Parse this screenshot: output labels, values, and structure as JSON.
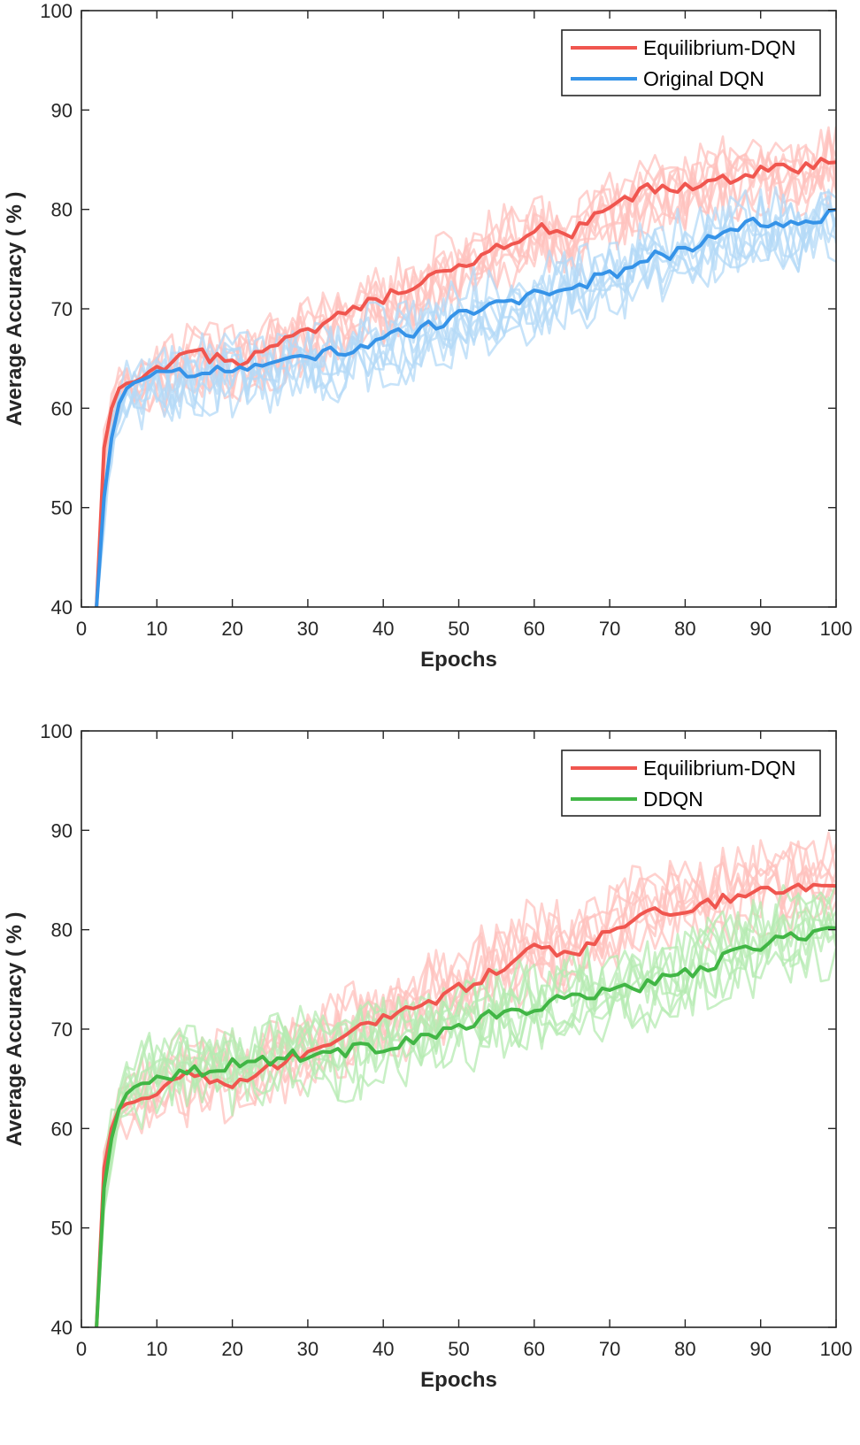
{
  "chart_data": [
    {
      "type": "line",
      "xlabel": "Epochs",
      "ylabel": "Average Accuracy ( % )",
      "xlim": [
        0,
        100
      ],
      "ylim": [
        40,
        100
      ],
      "xticks": [
        "0",
        "10",
        "20",
        "30",
        "40",
        "50",
        "60",
        "70",
        "80",
        "90",
        "100"
      ],
      "yticks": [
        "40",
        "50",
        "60",
        "70",
        "80",
        "90",
        "100"
      ],
      "legend_position": "top-right",
      "grid": false,
      "series": [
        {
          "name": "Equilibrium-DQN",
          "color": "#f0564f",
          "light_color": "#ffc2bd",
          "x": [
            2,
            3,
            4,
            5,
            6,
            8,
            10,
            12,
            15,
            18,
            20,
            25,
            30,
            35,
            40,
            45,
            50,
            55,
            60,
            65,
            70,
            75,
            80,
            85,
            90,
            95,
            100
          ],
          "values": [
            40,
            56,
            60,
            62,
            62.5,
            62.5,
            64,
            64.5,
            65.5,
            65,
            64.5,
            66,
            67.5,
            69.5,
            71,
            72.5,
            74,
            76,
            78,
            77.5,
            80,
            82,
            82,
            83,
            84,
            84,
            85
          ]
        },
        {
          "name": "Original DQN",
          "color": "#3593e8",
          "light_color": "#b4daf7",
          "x": [
            2,
            3,
            4,
            5,
            6,
            8,
            10,
            12,
            15,
            18,
            20,
            25,
            30,
            35,
            40,
            45,
            50,
            55,
            60,
            65,
            70,
            75,
            80,
            85,
            90,
            95,
            100
          ],
          "values": [
            40,
            51,
            57,
            60.5,
            62,
            62.8,
            63.2,
            63.3,
            63.5,
            64,
            63.8,
            64.2,
            65.3,
            65.8,
            67.2,
            67.8,
            69.5,
            70.2,
            71.5,
            72.2,
            73.5,
            75,
            76,
            77.2,
            78.8,
            78.5,
            79.5
          ]
        }
      ]
    },
    {
      "type": "line",
      "xlabel": "Epochs",
      "ylabel": "Average Accuracy ( % )",
      "xlim": [
        0,
        100
      ],
      "ylim": [
        40,
        100
      ],
      "xticks": [
        "0",
        "10",
        "20",
        "30",
        "40",
        "50",
        "60",
        "70",
        "80",
        "90",
        "100"
      ],
      "yticks": [
        "40",
        "50",
        "60",
        "70",
        "80",
        "90",
        "100"
      ],
      "legend_position": "top-right",
      "grid": false,
      "series": [
        {
          "name": "Equilibrium-DQN",
          "color": "#f0564f",
          "light_color": "#ffc2bd",
          "x": [
            2,
            3,
            4,
            5,
            6,
            8,
            10,
            12,
            15,
            18,
            20,
            25,
            30,
            35,
            40,
            45,
            50,
            55,
            60,
            65,
            70,
            75,
            80,
            85,
            90,
            95,
            100
          ],
          "values": [
            40,
            56,
            60,
            62,
            62.5,
            62.5,
            64,
            64.5,
            65.5,
            65,
            64.5,
            66,
            67.5,
            69.5,
            71,
            72.5,
            74,
            76,
            78,
            77.5,
            80,
            82,
            82,
            83,
            84,
            84,
            85
          ]
        },
        {
          "name": "DDQN",
          "color": "#41b645",
          "light_color": "#b5ebb1",
          "x": [
            2,
            3,
            4,
            5,
            6,
            8,
            10,
            12,
            15,
            18,
            20,
            25,
            30,
            35,
            40,
            45,
            50,
            55,
            60,
            65,
            70,
            75,
            80,
            85,
            90,
            95,
            100
          ],
          "values": [
            40,
            54,
            59,
            62,
            63.5,
            64.5,
            65.5,
            65.5,
            65.8,
            66.2,
            66.5,
            67,
            67.5,
            67.8,
            68.3,
            69.2,
            70,
            71.5,
            72,
            73.2,
            74,
            74.5,
            75.5,
            77,
            78.5,
            79.5,
            80
          ]
        }
      ]
    }
  ]
}
